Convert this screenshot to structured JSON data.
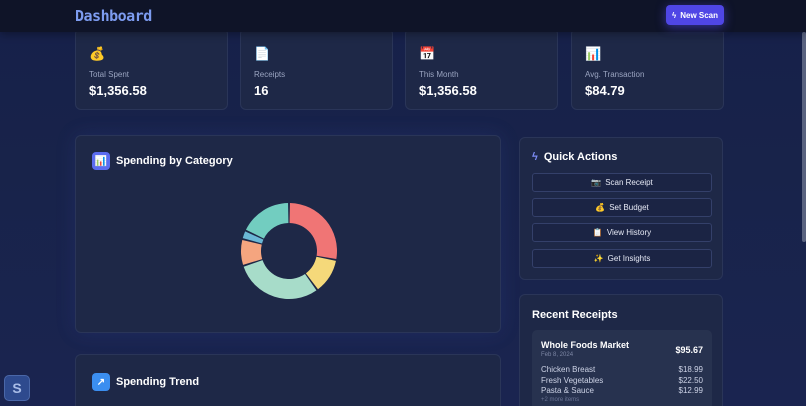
{
  "header": {
    "title": "Dashboard",
    "new_scan_label": "New Scan",
    "new_scan_icon": "lightning-icon"
  },
  "stats": [
    {
      "icon": "money-bag-icon",
      "glyph": "💰",
      "label": "Total Spent",
      "value": "$1,356.58"
    },
    {
      "icon": "document-icon",
      "glyph": "📄",
      "label": "Receipts",
      "value": "16"
    },
    {
      "icon": "calendar-icon",
      "glyph": "📅",
      "label": "This Month",
      "value": "$1,356.58"
    },
    {
      "icon": "bar-chart-icon",
      "glyph": "📊",
      "label": "Avg. Transaction",
      "value": "$84.79"
    }
  ],
  "category": {
    "title": "Spending by Category"
  },
  "trend": {
    "title": "Spending Trend"
  },
  "chart_data": {
    "type": "pie",
    "donut": true,
    "values": [
      28,
      12,
      30,
      9,
      3,
      18
    ],
    "colors": [
      "#f07575",
      "#f5d97a",
      "#a7dcc9",
      "#f5a57f",
      "#6bb8d6",
      "#72cdc0"
    ]
  },
  "quick_actions": {
    "title": "Quick Actions",
    "items": [
      {
        "glyph": "📷",
        "label": "Scan Receipt"
      },
      {
        "glyph": "💰",
        "label": "Set Budget"
      },
      {
        "glyph": "📋",
        "label": "View History"
      },
      {
        "glyph": "✨",
        "label": "Get Insights"
      }
    ]
  },
  "recent": {
    "title": "Recent Receipts",
    "receipt": {
      "store": "Whole Foods Market",
      "date": "Feb 8, 2024",
      "total": "$95.67",
      "items": [
        {
          "name": "Chicken Breast",
          "price": "$18.99"
        },
        {
          "name": "Fresh Vegetables",
          "price": "$22.50"
        },
        {
          "name": "Pasta & Sauce",
          "price": "$12.99"
        }
      ],
      "more": "+2 more items"
    }
  }
}
